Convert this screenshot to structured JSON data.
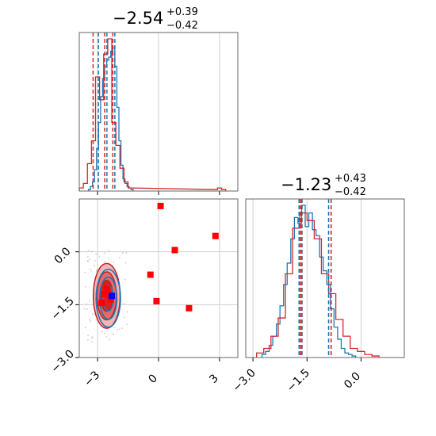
{
  "chart_data": [
    {
      "type": "histogram",
      "panel": "top-left",
      "title_value": "−2.54",
      "title_upper": "+0.39",
      "title_lower": "−0.42",
      "xlim": [
        -3.9,
        3.9
      ],
      "grid": true,
      "series": [
        {
          "name": "",
          "color": "#1f77b4",
          "bins_x": [
            -3.4,
            -3.3,
            -3.2,
            -3.1,
            -3.0,
            -2.9,
            -2.8,
            -2.7,
            -2.6,
            -2.5,
            -2.4,
            -2.3,
            -2.2,
            -2.1,
            -2.0,
            -1.9,
            -1.8,
            -1.7,
            -1.6,
            -1.5,
            -1.4,
            -1.3
          ],
          "counts": [
            0.01,
            0.03,
            0.06,
            0.14,
            0.28,
            0.45,
            0.62,
            0.74,
            0.82,
            0.86,
            0.88,
            0.92,
            0.94,
            0.82,
            0.55,
            0.33,
            0.17,
            0.08,
            0.05,
            0.03,
            0.02,
            0.01
          ],
          "quantiles": [
            -2.96,
            -2.54,
            -2.15
          ]
        },
        {
          "name": "",
          "color": "#d62728",
          "bins_x": [
            -3.8,
            -3.6,
            -3.4,
            -3.2,
            -3.0,
            -2.8,
            -2.6,
            -2.4,
            -2.2,
            -2.0,
            -1.8,
            -1.6,
            -1.4,
            2.8,
            3.0,
            3.2
          ],
          "counts": [
            0.02,
            0.05,
            0.18,
            0.33,
            0.75,
            0.6,
            0.9,
            1.0,
            0.45,
            0.3,
            0.15,
            0.06,
            0.02,
            0.01,
            0.02,
            0.01
          ],
          "quantiles": [
            -3.22,
            -2.65,
            -2.25
          ]
        }
      ]
    },
    {
      "type": "scatter",
      "panel": "bottom-left",
      "xlim": [
        -3.9,
        3.9
      ],
      "ylim": [
        -3.0,
        1.5
      ],
      "x_ticks": [
        -3,
        0,
        3
      ],
      "x_tick_labels": [
        "−3",
        "0",
        "3"
      ],
      "y_ticks": [
        -3.0,
        -1.5,
        0.0
      ],
      "y_tick_labels": [
        "−3.0",
        "−1.5",
        "0.0"
      ],
      "grid": true,
      "contour_center": [
        -2.55,
        -1.25
      ],
      "red_points": [
        {
          "x": 0.1,
          "y": 1.3
        },
        {
          "x": 2.8,
          "y": 0.45
        },
        {
          "x": 0.8,
          "y": 0.05
        },
        {
          "x": -0.4,
          "y": -0.65
        },
        {
          "x": -0.1,
          "y": -1.4
        },
        {
          "x": 1.5,
          "y": -1.6
        },
        {
          "x": -2.65,
          "y": -1.2
        },
        {
          "x": -2.35,
          "y": -1.35
        },
        {
          "x": -2.8,
          "y": -1.45
        },
        {
          "x": -2.55,
          "y": -1.05
        }
      ],
      "blue_point": {
        "x": -2.3,
        "y": -1.25
      }
    },
    {
      "type": "histogram",
      "panel": "bottom-right",
      "title_value": "−1.23",
      "title_upper": "+0.43",
      "title_lower": "−0.42",
      "xlim": [
        -3.2,
        1.2
      ],
      "x_ticks": [
        -3.0,
        -1.5,
        0.0
      ],
      "x_tick_labels": [
        "−3.0",
        "−1.5",
        "0.0"
      ],
      "grid": true,
      "series": [
        {
          "name": "",
          "color": "#1f77b4",
          "bins_x": [
            -2.7,
            -2.6,
            -2.5,
            -2.4,
            -2.3,
            -2.2,
            -2.1,
            -2.0,
            -1.9,
            -1.8,
            -1.7,
            -1.6,
            -1.5,
            -1.4,
            -1.3,
            -1.2,
            -1.1,
            -1.0,
            -0.9,
            -0.8,
            -0.7,
            -0.6,
            -0.5,
            -0.4,
            -0.3,
            -0.2
          ],
          "counts": [
            0.02,
            0.04,
            0.08,
            0.14,
            0.22,
            0.34,
            0.48,
            0.62,
            0.78,
            0.92,
            0.88,
            1.0,
            0.86,
            0.95,
            0.84,
            0.8,
            0.66,
            0.57,
            0.48,
            0.32,
            0.2,
            0.12,
            0.06,
            0.03,
            0.02,
            0.01
          ],
          "quantiles": [
            -1.65,
            -1.23,
            -0.8
          ]
        },
        {
          "name": "",
          "color": "#d62728",
          "bins_x": [
            -2.8,
            -2.6,
            -2.4,
            -2.2,
            -2.0,
            -1.8,
            -1.6,
            -1.4,
            -1.2,
            -1.0,
            -0.8,
            -0.6,
            -0.4,
            -0.2,
            0.0,
            0.2,
            0.4
          ],
          "counts": [
            0.03,
            0.06,
            0.14,
            0.26,
            0.55,
            0.85,
            0.95,
            0.9,
            0.78,
            0.55,
            0.42,
            0.25,
            0.14,
            0.06,
            0.04,
            0.02,
            0.01
          ],
          "quantiles": [
            -1.7,
            -1.25,
            -0.75
          ]
        }
      ]
    }
  ]
}
